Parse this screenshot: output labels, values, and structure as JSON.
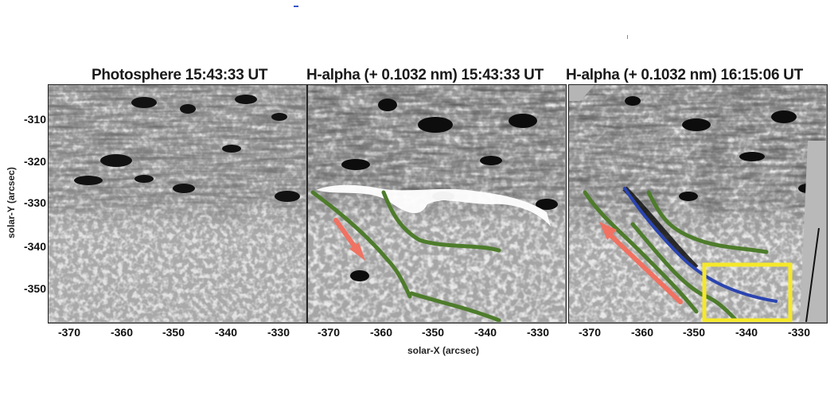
{
  "panels": [
    {
      "title": "Photosphere 15:43:33 UT",
      "kind": "photosphere"
    },
    {
      "title": "H-alpha (+ 0.1032 nm) 15:43:33 UT",
      "kind": "halpha_early"
    },
    {
      "title": "H-alpha (+ 0.1032 nm) 16:15:06 UT",
      "kind": "halpha_late"
    }
  ],
  "axes": {
    "xlabel": "solar-X (arcsec)",
    "ylabel": "solar-Y (arcsec)",
    "x_ticks": [
      "-370",
      "-360",
      "-350",
      "-340",
      "-330"
    ],
    "y_ticks": [
      "-310",
      "-320",
      "-330",
      "-340",
      "-350"
    ],
    "x_range": [
      -376,
      -326
    ],
    "y_range": [
      -357,
      -302
    ]
  },
  "overlay_colors": {
    "green_line": "#4e7c2c",
    "blue_line": "#2a44b0",
    "red_arrow": "#f07262",
    "yellow_box": "#f5e82a"
  }
}
